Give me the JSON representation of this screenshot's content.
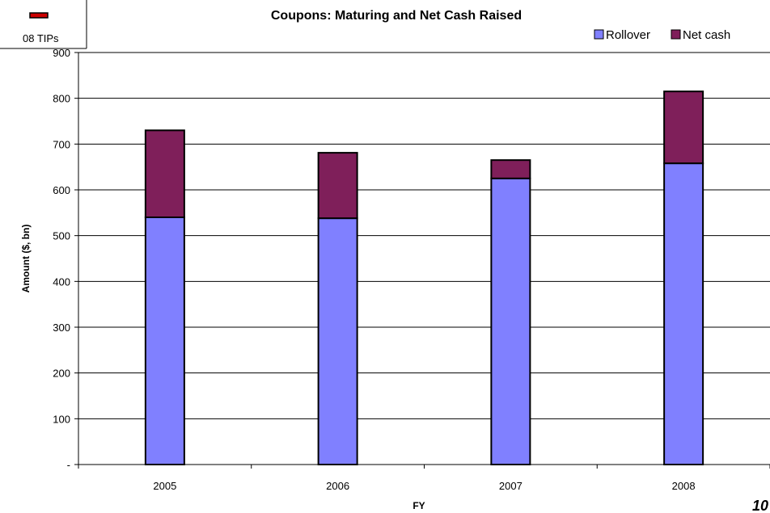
{
  "chart_data": {
    "type": "bar",
    "stacked": true,
    "title": "Coupons: Maturing and Net Cash Raised",
    "xlabel": "FY",
    "ylabel": "Amount ($, bn)",
    "categories": [
      "2005",
      "2006",
      "2007",
      "2008"
    ],
    "series": [
      {
        "name": "Rollover",
        "color": "#8080FF",
        "values": [
          540,
          538,
          625,
          658
        ]
      },
      {
        "name": "Net cash",
        "color": "#7F1F5A",
        "values": [
          190,
          143,
          40,
          157
        ]
      }
    ],
    "ylim": [
      0,
      900
    ],
    "yticks": [
      0,
      100,
      200,
      300,
      400,
      500,
      600,
      700,
      800,
      900
    ],
    "ytick_labels": [
      "-",
      "100",
      "200",
      "300",
      "400",
      "500",
      "600",
      "700",
      "800",
      "900"
    ],
    "grid": true,
    "legend_position": "top-right"
  },
  "annotations": {
    "note_label": "08 TIPs",
    "note_color": "#CC0000",
    "page_number": "10"
  }
}
